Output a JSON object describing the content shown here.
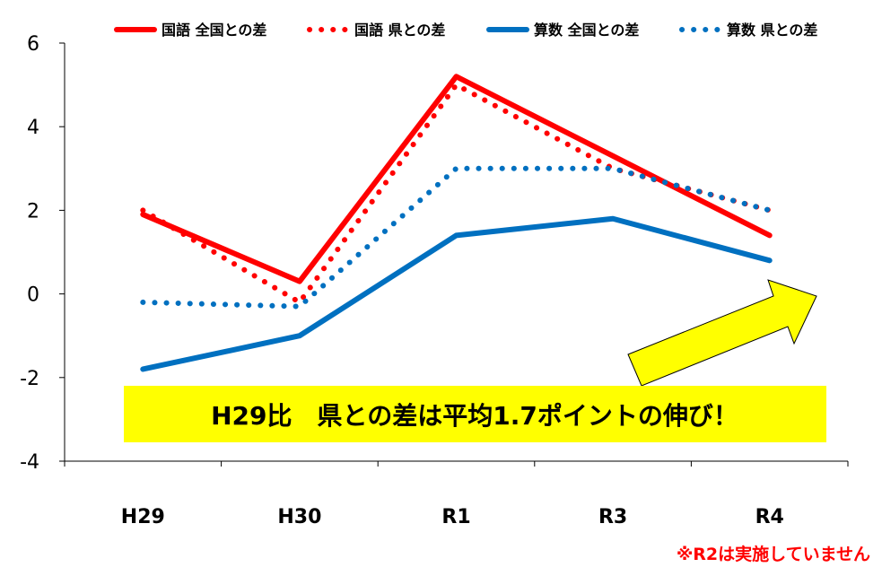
{
  "chart_data": {
    "type": "line",
    "categories": [
      "H29",
      "H30",
      "R1",
      "R3",
      "R4"
    ],
    "ylim": [
      -4,
      6
    ],
    "yticks": [
      6,
      4,
      2,
      0,
      -2,
      -4
    ],
    "grid": false,
    "legend_position": "top",
    "series": [
      {
        "name": "国語 全国との差",
        "values": [
          1.9,
          0.3,
          5.2,
          3.3,
          1.4
        ],
        "color": "#ff0000",
        "style": "solid"
      },
      {
        "name": "国語 県との差",
        "values": [
          2.0,
          -0.2,
          5.0,
          3.0,
          2.0
        ],
        "color": "#ff0000",
        "style": "dotted"
      },
      {
        "name": "算数 全国との差",
        "values": [
          -1.8,
          -1.0,
          1.4,
          1.8,
          0.8
        ],
        "color": "#0070c0",
        "style": "solid"
      },
      {
        "name": "算数 県との差",
        "values": [
          -0.2,
          -0.3,
          3.0,
          3.0,
          2.0
        ],
        "color": "#0070c0",
        "style": "dotted"
      }
    ],
    "annotation": "H29比　県との差は平均1.7ポイントの伸び！",
    "annotation_bg": "#ffff00",
    "note": "※R2は実施していません"
  }
}
